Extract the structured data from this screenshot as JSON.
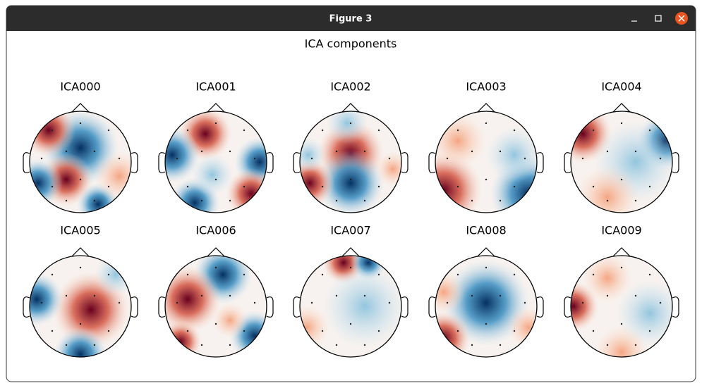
{
  "window": {
    "title": "Figure 3"
  },
  "figure": {
    "suptitle": "ICA components",
    "components": [
      "ICA000",
      "ICA001",
      "ICA002",
      "ICA003",
      "ICA004",
      "ICA005",
      "ICA006",
      "ICA007",
      "ICA008",
      "ICA009"
    ]
  }
}
